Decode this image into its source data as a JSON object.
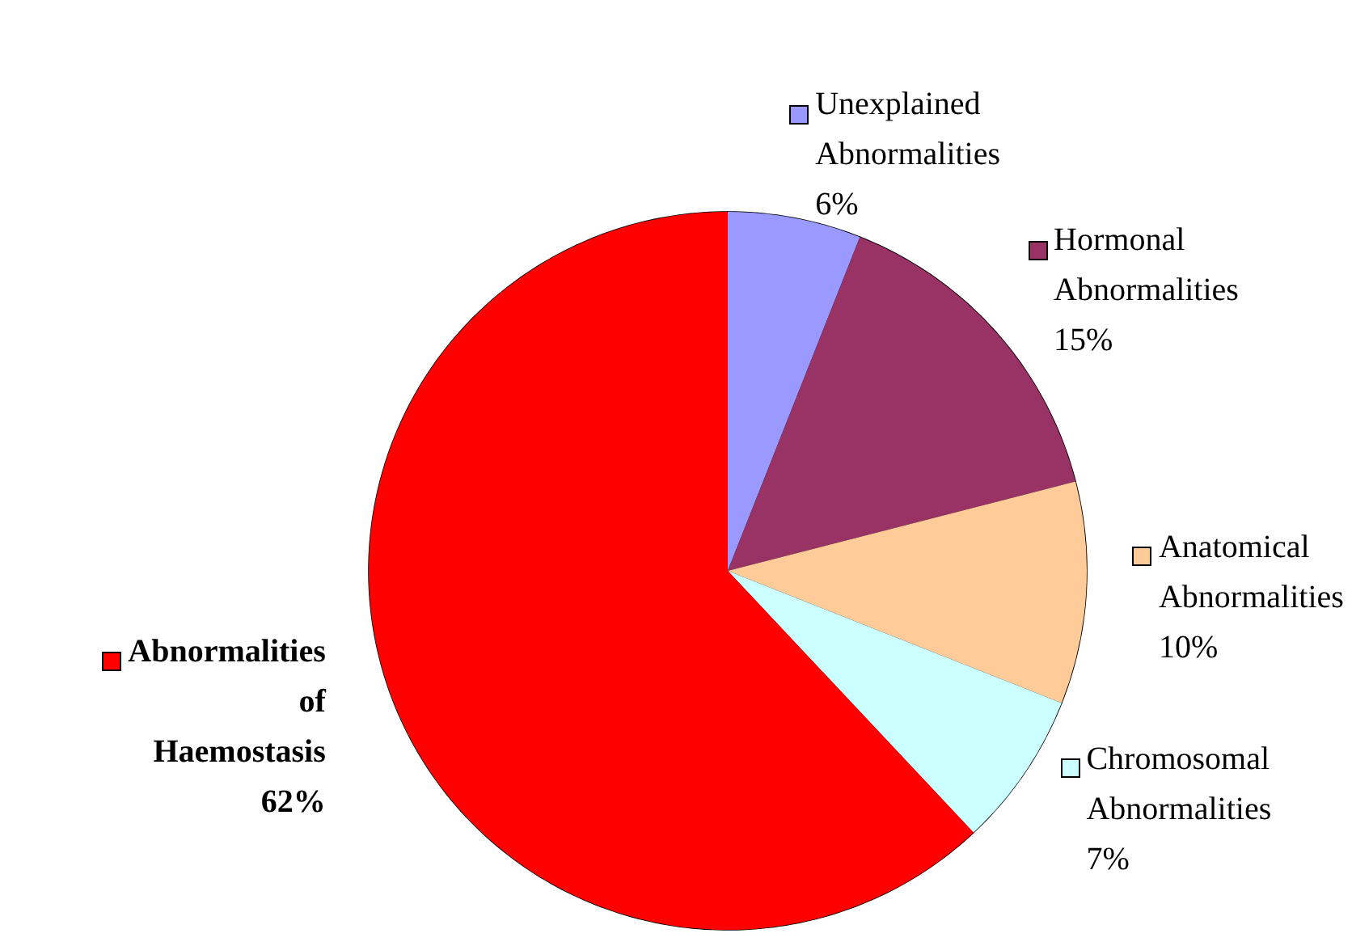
{
  "chart_data": {
    "type": "pie",
    "categories": [
      "Unexplained Abnormalities",
      "Hormonal Abnormalities",
      "Anatomical Abnormalities",
      "Chromosomal Abnormalities",
      "Abnormalities of Haemostasis"
    ],
    "values": [
      6,
      15,
      10,
      7,
      62
    ],
    "colors": [
      "#9999ff",
      "#993366",
      "#ffcc99",
      "#ccffff",
      "#ff0000"
    ],
    "value_labels": [
      "6%",
      "15%",
      "10%",
      "7%",
      "62%"
    ],
    "legend": "right"
  }
}
